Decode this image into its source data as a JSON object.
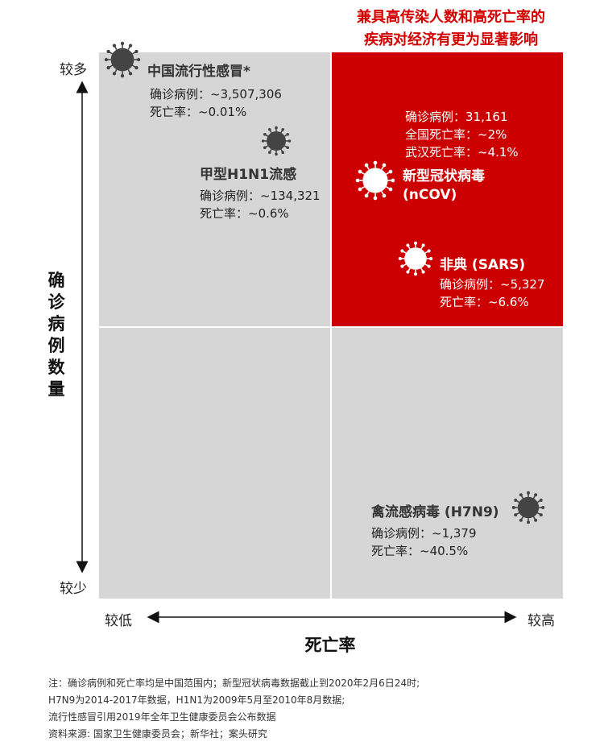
{
  "highlight_title": [
    "兼具高传染人数和高死亡率的",
    "疾病对经济有更为显著影响"
  ],
  "axis": {
    "y_label": "确诊病例数量",
    "y_high": "较多",
    "y_low": "较少",
    "x_label": "死亡率",
    "x_low": "较低",
    "x_high": "较高"
  },
  "colors": {
    "highlight": "#cc0000",
    "quadrant": "#d6d6d6",
    "virus_dark": "#444444",
    "virus_light": "#ffffff"
  },
  "diseases": {
    "flu": {
      "name": "中国流行性感冒*",
      "cases": "确诊病例：~3,507,306",
      "death": "死亡率：~0.01%",
      "icon": "virus-icon"
    },
    "h1n1": {
      "name": "甲型H1N1流感",
      "cases": "确诊病例：~134,321",
      "death": "死亡率：~0.6%",
      "icon": "virus-icon"
    },
    "ncov": {
      "name_line1": "新型冠状病毒",
      "name_line2": "(nCOV)",
      "cases": "确诊病例：31,161",
      "death_national": "全国死亡率：~2%",
      "death_wuhan": "武汉死亡率：~4.1%",
      "icon": "virus-icon"
    },
    "sars": {
      "name": "非典 (SARS)",
      "cases": "确诊病例：~5,327",
      "death": "死亡率：~6.6%",
      "icon": "virus-icon"
    },
    "h7n9": {
      "name": "禽流感病毒 (H7N9)",
      "cases": "确诊病例：~1,379",
      "death": "死亡率：~40.5%",
      "icon": "virus-icon"
    }
  },
  "notes": [
    "注：确诊病例和死亡率均是中国范围内；新型冠状病毒数据截止到2020年2月6日24时;",
    "H7N9为2014-2017年数据，H1N1为2009年5月至2010年8月数据;",
    "流行性感冒引用2019年全年卫生健康委员会公布数据",
    "资料来源: 国家卫生健康委员会；新华社；案头研究"
  ],
  "chart_data": {
    "type": "scatter",
    "title": "兼具高传染人数和高死亡率的疾病对经济有更为显著影响",
    "xlabel": "死亡率",
    "ylabel": "确诊病例数量",
    "x_ticks": [
      "较低",
      "较高"
    ],
    "y_ticks": [
      "较少",
      "较多"
    ],
    "points": [
      {
        "name": "中国流行性感冒*",
        "cases": 3507306,
        "death_rate_pct": 0.01
      },
      {
        "name": "甲型H1N1流感",
        "cases": 134321,
        "death_rate_pct": 0.6
      },
      {
        "name": "新型冠状病毒 (nCOV)",
        "cases": 31161,
        "death_rate_pct": 2,
        "death_rate_wuhan_pct": 4.1
      },
      {
        "name": "非典 (SARS)",
        "cases": 5327,
        "death_rate_pct": 6.6
      },
      {
        "name": "禽流感病毒 (H7N9)",
        "cases": 1379,
        "death_rate_pct": 40.5
      }
    ],
    "highlight_quadrant": "top-right"
  }
}
